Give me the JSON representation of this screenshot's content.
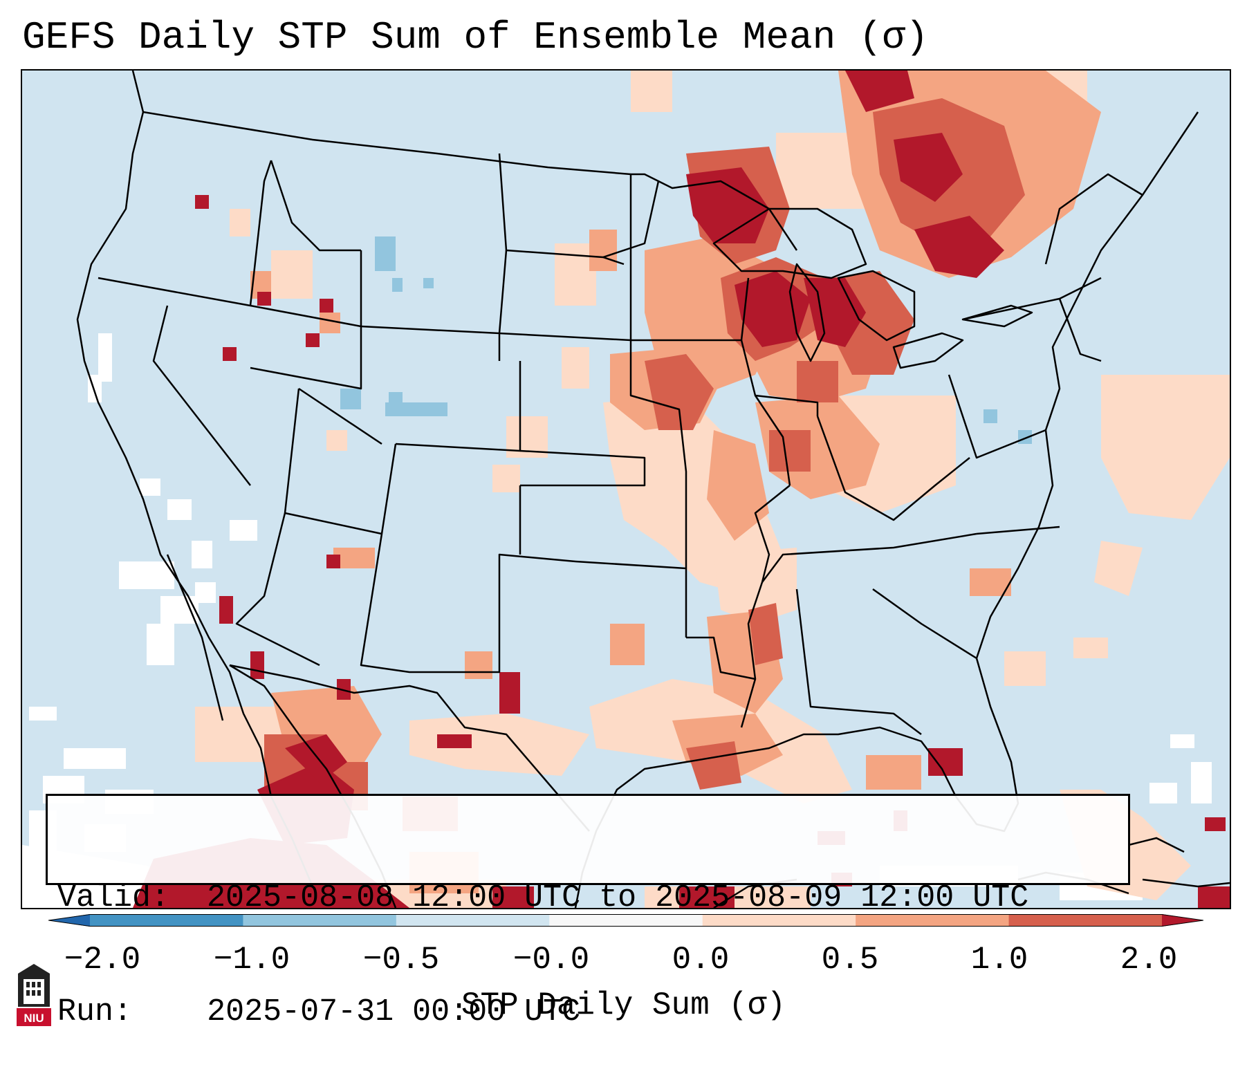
{
  "title": "GEFS Daily STP Sum of Ensemble Mean (σ)",
  "info": {
    "valid_label": "Valid:",
    "valid_value": "2025-08-08 12:00 UTC to 2025-08-09 12:00 UTC",
    "run_label": "Run:",
    "run_value": "2025-07-31 00:00 UTC"
  },
  "colorbar": {
    "label": "STP Daily Sum (σ)",
    "ticks": [
      "−2.0",
      "−1.0",
      "−0.5",
      "−0.0",
      "0.0",
      "0.5",
      "1.0",
      "2.0"
    ],
    "bins": [
      {
        "from": -2.0,
        "to": -1.0,
        "color": "#4393c3"
      },
      {
        "from": -1.0,
        "to": -0.5,
        "color": "#92c5de"
      },
      {
        "from": -0.5,
        "to": -0.0,
        "color": "#d1e5f0"
      },
      {
        "from": -0.0,
        "to": 0.0,
        "color": "#f7f7f7"
      },
      {
        "from": 0.0,
        "to": 0.5,
        "color": "#fddbc7"
      },
      {
        "from": 0.5,
        "to": 1.0,
        "color": "#f4a582"
      },
      {
        "from": 1.0,
        "to": 2.0,
        "color": "#d6604d"
      }
    ],
    "extend_low_color": "#2166ac",
    "extend_high_color": "#b2182b"
  },
  "colors": {
    "ocean_background": "#d0e4f0",
    "no_data": "#ffffff",
    "low_positive": "#fddbc7",
    "mid_positive": "#f4a582",
    "high_positive": "#d6604d",
    "extreme_positive": "#b2182b",
    "slight_negative": "#92c5de"
  },
  "logo": {
    "text": "NIU",
    "color": "#c8102e"
  }
}
